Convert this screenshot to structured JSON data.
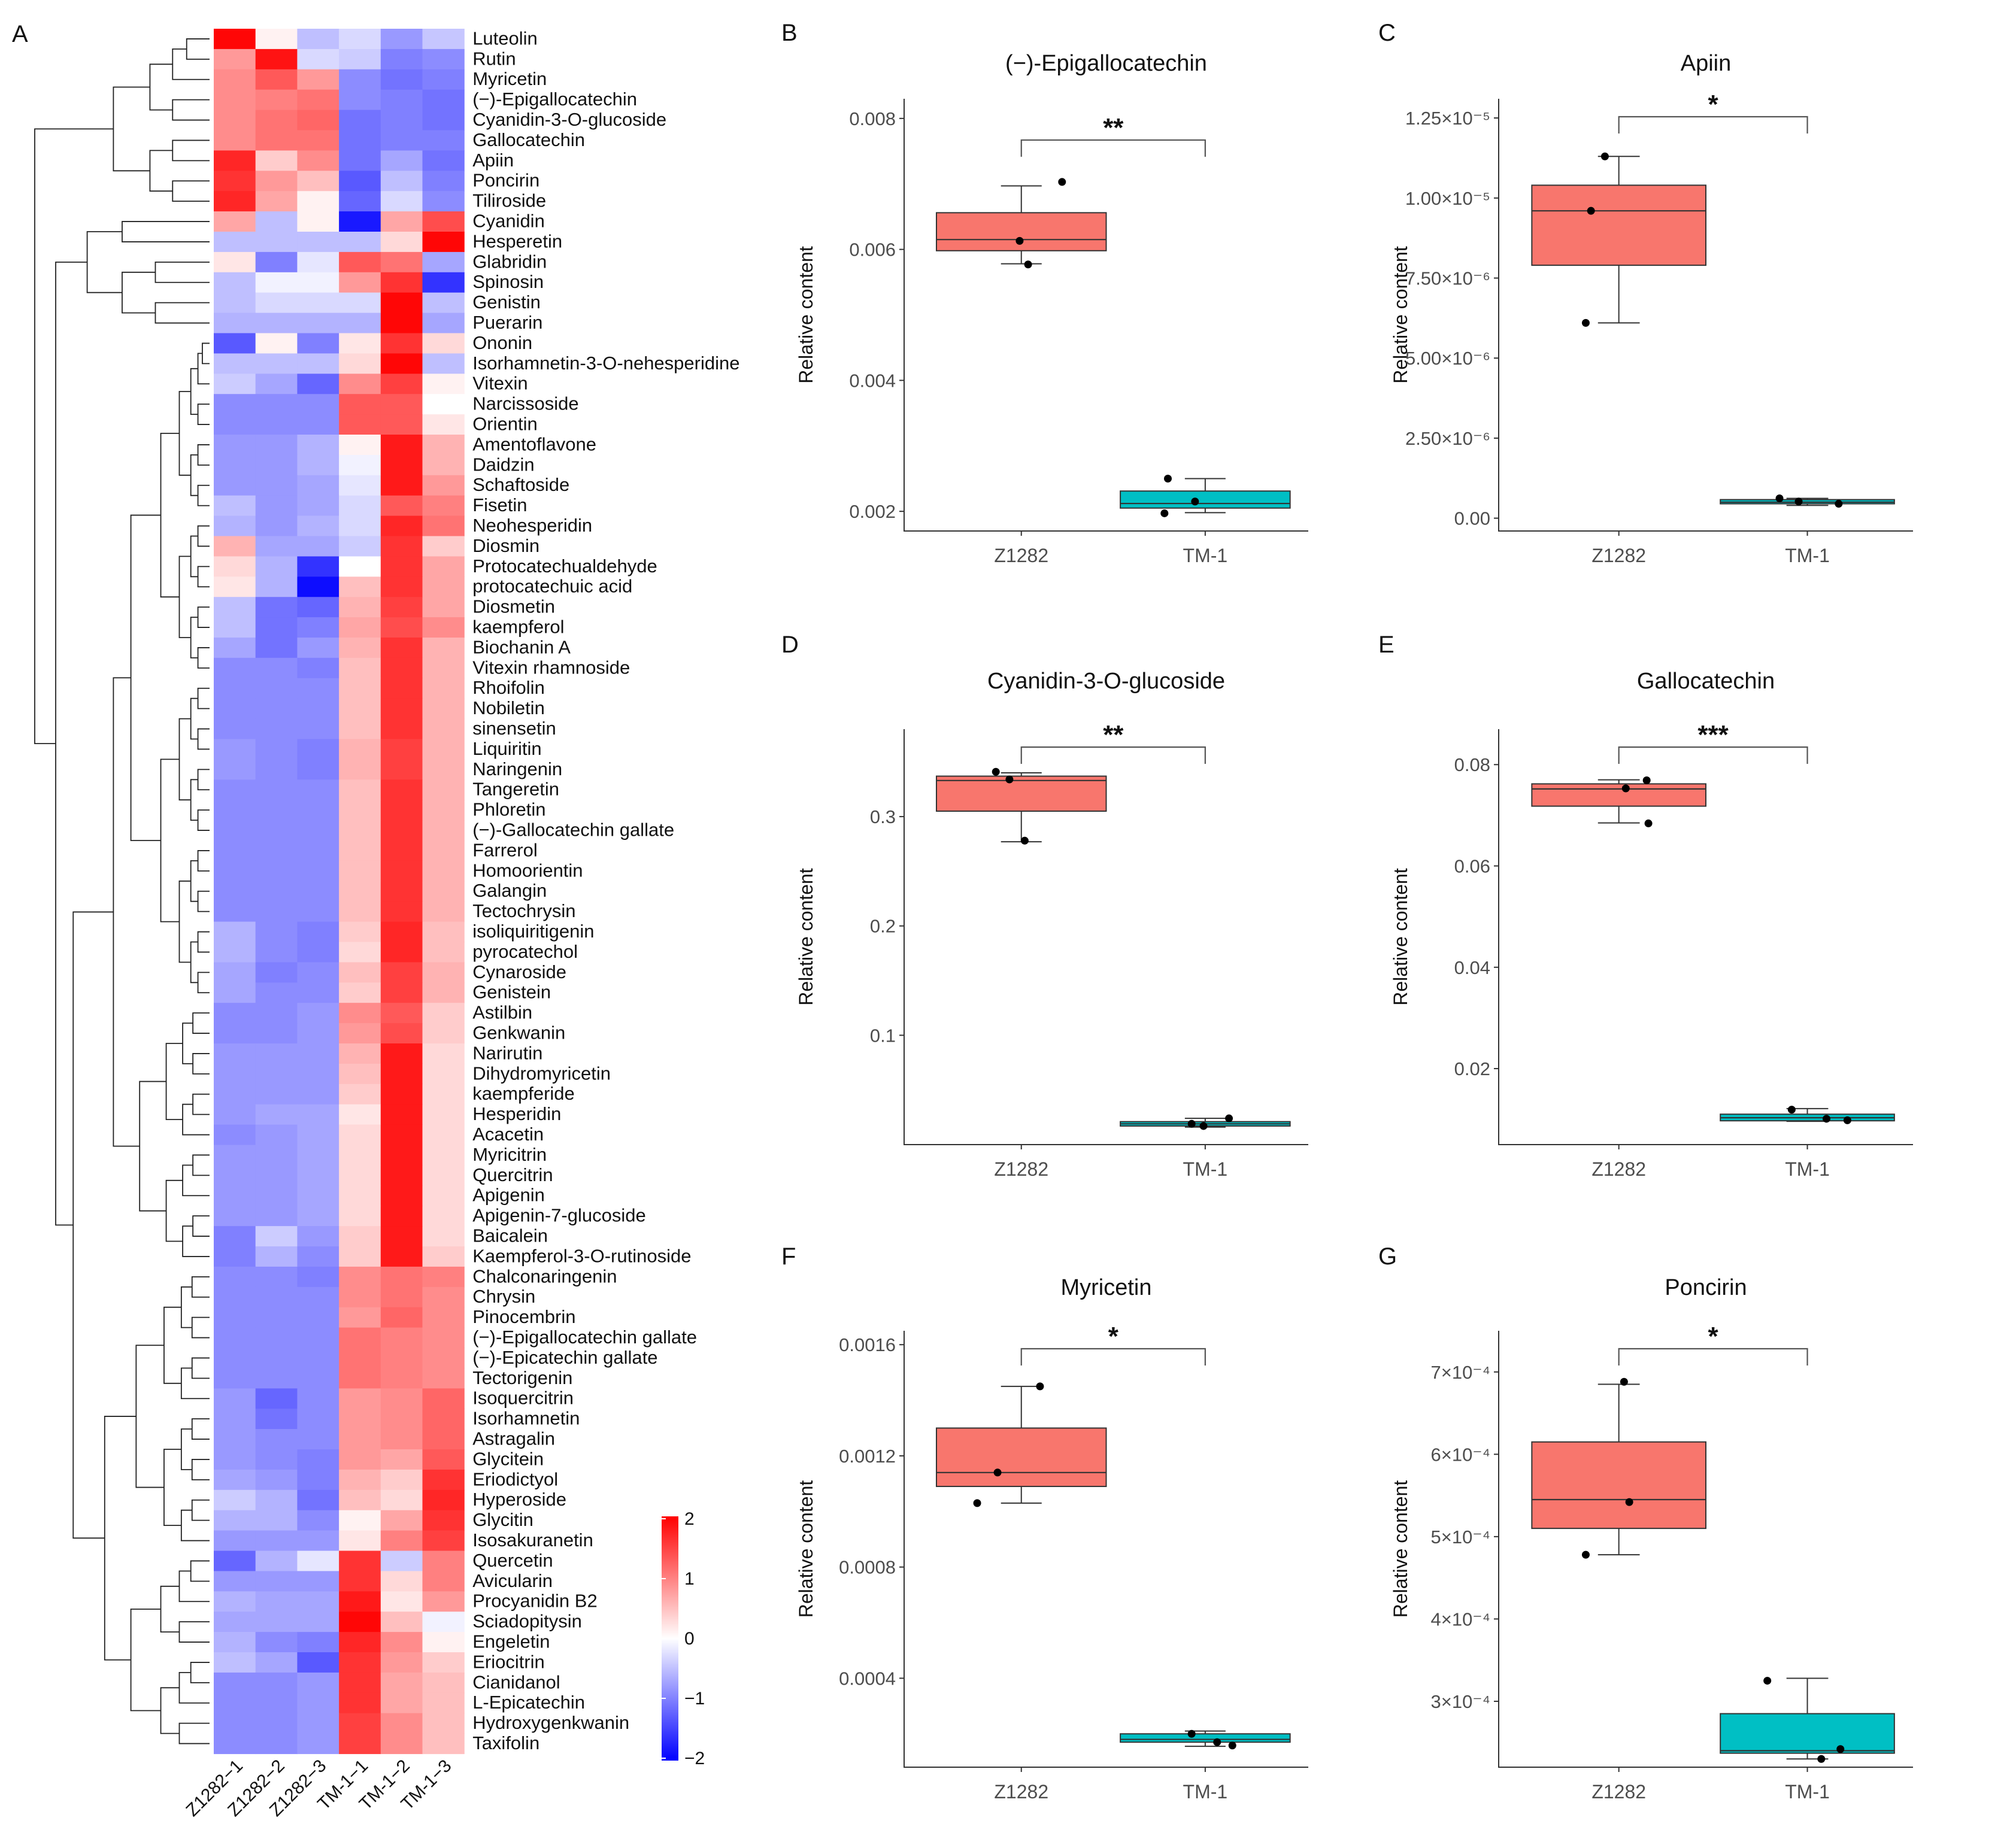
{
  "heatmap": {
    "panel_label": "A",
    "samples": [
      "Z1282−1",
      "Z1282−2",
      "Z1282−3",
      "TM-1−1",
      "TM-1−2",
      "TM-1−3"
    ],
    "compounds": [
      "Luteolin",
      "Rutin",
      "Myricetin",
      "(−)-Epigallocatechin",
      "Cyanidin-3-O-glucoside",
      "Gallocatechin",
      "Apiin",
      "Poncirin",
      "Tiliroside",
      "Cyanidin",
      "Hesperetin",
      "Glabridin",
      "Spinosin",
      "Genistin",
      "Puerarin",
      "Ononin",
      "Isorhamnetin-3-O-nehesperidine",
      "Vitexin",
      "Narcissoside",
      "Orientin",
      "Amentoflavone",
      "Daidzin",
      "Schaftoside",
      "Fisetin",
      "Neohesperidin",
      "Diosmin",
      "Protocatechualdehyde",
      "protocatechuic acid",
      "Diosmetin",
      "kaempferol",
      "Biochanin A",
      "Vitexin rhamnoside",
      "Rhoifolin",
      "Nobiletin",
      "sinensetin",
      "Liquiritin",
      "Naringenin",
      "Tangeretin",
      "Phloretin",
      "(−)-Gallocatechin gallate",
      "Farrerol",
      "Homoorientin",
      "Galangin",
      "Tectochrysin",
      "isoliquiritigenin",
      "pyrocatechol",
      "Cynaroside",
      "Genistein",
      "Astilbin",
      "Genkwanin",
      "Narirutin",
      "Dihydromyricetin",
      "kaempferide",
      "Hesperidin",
      "Acacetin",
      "Myricitrin",
      "Quercitrin",
      "Apigenin",
      "Apigenin-7-glucoside",
      "Baicalein",
      "Kaempferol-3-O-rutinoside",
      "Chalconaringenin",
      "Chrysin",
      "Pinocembrin",
      "(−)-Epigallocatechin gallate",
      "(−)-Epicatechin gallate",
      "Tectorigenin",
      "Isoquercitrin",
      "Isorhamnetin",
      "Astragalin",
      "Glycitein",
      "Eriodictyol",
      "Hyperoside",
      "Glycitin",
      "Isosakuranetin",
      "Quercetin",
      "Avicularin",
      "Procyanidin B2",
      "Sciadopitysin",
      "Engeletin",
      "Eriocitrin",
      "Cianidanol",
      "L-Epicatechin",
      "Hydroxygenkwanin",
      "Taxifolin"
    ],
    "values": [
      [
        1.95,
        0.1,
        -0.5,
        -0.3,
        -0.8,
        -0.45
      ],
      [
        0.8,
        1.85,
        -0.3,
        -0.4,
        -1.0,
        -0.9
      ],
      [
        0.9,
        1.3,
        0.8,
        -0.9,
        -1.1,
        -1.0
      ],
      [
        0.9,
        1.0,
        1.1,
        -0.9,
        -1.0,
        -1.1
      ],
      [
        0.9,
        1.1,
        1.2,
        -1.1,
        -1.0,
        -1.1
      ],
      [
        0.9,
        1.1,
        1.1,
        -1.1,
        -1.0,
        -1.0
      ],
      [
        1.7,
        0.4,
        0.9,
        -1.1,
        -0.7,
        -1.1
      ],
      [
        1.6,
        0.8,
        0.5,
        -1.3,
        -0.5,
        -1.0
      ],
      [
        1.7,
        0.7,
        0.1,
        -1.2,
        -0.3,
        -0.9
      ],
      [
        0.7,
        -0.5,
        0.1,
        -1.8,
        0.7,
        1.4
      ],
      [
        -0.5,
        -0.5,
        -0.5,
        -0.5,
        0.3,
        1.95
      ],
      [
        0.2,
        -1.0,
        -0.2,
        1.3,
        1.1,
        -0.7
      ],
      [
        -0.5,
        -0.1,
        -0.1,
        0.8,
        1.6,
        -1.6
      ],
      [
        -0.5,
        -0.3,
        -0.3,
        -0.3,
        1.95,
        -0.5
      ],
      [
        -0.6,
        -0.6,
        -0.6,
        -0.6,
        1.95,
        -0.7
      ],
      [
        -1.3,
        0.1,
        -1.0,
        0.2,
        1.6,
        0.3
      ],
      [
        -0.5,
        -0.5,
        -0.5,
        0.3,
        1.95,
        -0.5
      ],
      [
        -0.4,
        -0.7,
        -1.2,
        0.9,
        1.5,
        0.1
      ],
      [
        -0.9,
        -0.9,
        -0.9,
        1.3,
        1.3,
        0.0
      ],
      [
        -0.9,
        -0.9,
        -0.9,
        1.3,
        1.3,
        0.2
      ],
      [
        -0.8,
        -0.8,
        -0.6,
        0.1,
        1.8,
        0.6
      ],
      [
        -0.8,
        -0.8,
        -0.6,
        -0.1,
        1.8,
        0.6
      ],
      [
        -0.8,
        -0.8,
        -0.7,
        -0.2,
        1.8,
        0.8
      ],
      [
        -0.5,
        -0.8,
        -0.7,
        -0.3,
        1.3,
        1.0
      ],
      [
        -0.6,
        -0.8,
        -0.6,
        -0.3,
        1.7,
        1.1
      ],
      [
        0.6,
        -0.7,
        -0.7,
        -0.4,
        1.6,
        0.4
      ],
      [
        0.3,
        -0.6,
        -1.6,
        0.0,
        1.6,
        0.7
      ],
      [
        0.2,
        -0.6,
        -1.9,
        0.5,
        1.6,
        0.7
      ],
      [
        -0.5,
        -1.1,
        -1.2,
        0.6,
        1.5,
        0.7
      ],
      [
        -0.5,
        -1.1,
        -1.0,
        0.7,
        1.4,
        0.9
      ],
      [
        -0.7,
        -1.1,
        -0.8,
        0.6,
        1.6,
        0.6
      ],
      [
        -0.9,
        -0.9,
        -1.0,
        0.5,
        1.6,
        0.6
      ],
      [
        -0.9,
        -0.9,
        -0.9,
        0.5,
        1.6,
        0.6
      ],
      [
        -0.9,
        -0.9,
        -0.9,
        0.5,
        1.6,
        0.6
      ],
      [
        -0.9,
        -0.9,
        -0.9,
        0.5,
        1.6,
        0.6
      ],
      [
        -0.8,
        -0.9,
        -1.0,
        0.6,
        1.5,
        0.6
      ],
      [
        -0.8,
        -0.9,
        -1.0,
        0.6,
        1.5,
        0.6
      ],
      [
        -0.9,
        -0.9,
        -0.9,
        0.5,
        1.6,
        0.6
      ],
      [
        -0.9,
        -0.9,
        -0.9,
        0.5,
        1.6,
        0.6
      ],
      [
        -0.9,
        -0.9,
        -0.9,
        0.5,
        1.6,
        0.6
      ],
      [
        -0.9,
        -0.9,
        -0.9,
        0.5,
        1.6,
        0.6
      ],
      [
        -0.9,
        -0.9,
        -0.9,
        0.5,
        1.6,
        0.6
      ],
      [
        -0.9,
        -0.9,
        -0.9,
        0.5,
        1.6,
        0.6
      ],
      [
        -0.9,
        -0.9,
        -0.9,
        0.5,
        1.6,
        0.6
      ],
      [
        -0.6,
        -0.9,
        -1.0,
        0.4,
        1.7,
        0.5
      ],
      [
        -0.6,
        -0.9,
        -1.0,
        0.3,
        1.7,
        0.5
      ],
      [
        -0.7,
        -1.0,
        -0.9,
        0.5,
        1.5,
        0.6
      ],
      [
        -0.7,
        -0.9,
        -0.9,
        0.4,
        1.5,
        0.6
      ],
      [
        -0.9,
        -0.9,
        -0.8,
        0.9,
        1.3,
        0.4
      ],
      [
        -0.9,
        -0.9,
        -0.8,
        0.8,
        1.4,
        0.4
      ],
      [
        -0.8,
        -0.8,
        -0.8,
        0.6,
        1.8,
        0.3
      ],
      [
        -0.8,
        -0.8,
        -0.8,
        0.5,
        1.8,
        0.3
      ],
      [
        -0.8,
        -0.8,
        -0.8,
        0.4,
        1.8,
        0.3
      ],
      [
        -0.8,
        -0.7,
        -0.7,
        0.2,
        1.8,
        0.3
      ],
      [
        -0.9,
        -0.8,
        -0.7,
        0.3,
        1.8,
        0.3
      ],
      [
        -0.8,
        -0.8,
        -0.7,
        0.3,
        1.8,
        0.3
      ],
      [
        -0.8,
        -0.8,
        -0.7,
        0.3,
        1.8,
        0.3
      ],
      [
        -0.8,
        -0.8,
        -0.7,
        0.3,
        1.8,
        0.3
      ],
      [
        -0.8,
        -0.8,
        -0.7,
        0.3,
        1.8,
        0.3
      ],
      [
        -1.0,
        -0.4,
        -0.8,
        0.4,
        1.8,
        0.3
      ],
      [
        -1.0,
        -0.6,
        -0.9,
        0.4,
        1.8,
        0.4
      ],
      [
        -0.9,
        -0.9,
        -1.0,
        0.9,
        1.1,
        1.0
      ],
      [
        -0.9,
        -0.9,
        -0.9,
        0.9,
        1.1,
        0.9
      ],
      [
        -0.9,
        -0.9,
        -0.9,
        0.8,
        1.2,
        0.9
      ],
      [
        -0.9,
        -0.9,
        -0.9,
        1.1,
        1.0,
        0.9
      ],
      [
        -0.9,
        -0.9,
        -0.9,
        1.1,
        1.0,
        0.9
      ],
      [
        -0.9,
        -0.9,
        -0.9,
        1.1,
        1.0,
        0.9
      ],
      [
        -0.8,
        -1.2,
        -0.9,
        0.8,
        0.9,
        1.2
      ],
      [
        -0.8,
        -1.1,
        -0.9,
        0.8,
        0.9,
        1.2
      ],
      [
        -0.8,
        -0.9,
        -0.9,
        0.8,
        0.9,
        1.2
      ],
      [
        -0.8,
        -0.9,
        -1.0,
        0.8,
        0.7,
        1.3
      ],
      [
        -0.7,
        -0.8,
        -1.0,
        0.6,
        0.4,
        1.6
      ],
      [
        -0.4,
        -0.6,
        -1.1,
        0.5,
        0.3,
        1.7
      ],
      [
        -0.6,
        -0.6,
        -0.9,
        0.1,
        0.7,
        1.6
      ],
      [
        -0.8,
        -0.8,
        -0.8,
        0.2,
        1.0,
        1.5
      ],
      [
        -1.2,
        -0.6,
        -0.2,
        1.6,
        -0.4,
        1.0
      ],
      [
        -0.8,
        -0.8,
        -0.8,
        1.6,
        0.3,
        1.0
      ],
      [
        -0.6,
        -0.7,
        -0.7,
        1.8,
        0.2,
        0.8
      ],
      [
        -0.7,
        -0.7,
        -0.7,
        1.95,
        0.5,
        -0.1
      ],
      [
        -0.6,
        -0.9,
        -1.0,
        1.7,
        0.9,
        0.1
      ],
      [
        -0.5,
        -0.7,
        -1.3,
        1.6,
        0.8,
        0.4
      ],
      [
        -0.9,
        -0.9,
        -0.8,
        1.6,
        0.7,
        0.5
      ],
      [
        -0.9,
        -0.9,
        -0.8,
        1.6,
        0.7,
        0.5
      ],
      [
        -0.9,
        -0.9,
        -0.8,
        1.5,
        0.9,
        0.5
      ],
      [
        -0.9,
        -0.9,
        -0.8,
        1.5,
        0.9,
        0.5
      ]
    ],
    "legend": {
      "ticks": [
        2,
        1,
        0,
        -1,
        -2
      ],
      "labels": [
        "2",
        "1",
        "0",
        "−1",
        "−2"
      ],
      "colors": {
        "high": "#ff0000",
        "mid": "#ffffff",
        "low": "#0000ff"
      }
    }
  },
  "chart_data": [
    {
      "panel": "B",
      "type": "box",
      "title": "(−)-Epigallocatechin",
      "ylabel": "Relative content",
      "ylim": [
        0.0017,
        0.0083
      ],
      "ticks": [
        0.002,
        0.004,
        0.006,
        0.008
      ],
      "tick_labels": [
        "0.002",
        "0.004",
        "0.006",
        "0.008"
      ],
      "groups": [
        {
          "name": "Z1282",
          "q1": 0.00598,
          "median": 0.00615,
          "q3": 0.00656,
          "whisker_low": 0.00578,
          "whisker_high": 0.00697,
          "points": [
            0.00703,
            0.00613,
            0.00577
          ],
          "jitter": [
            0.24,
            -0.01,
            0.04
          ]
        },
        {
          "name": "TM-1",
          "q1": 0.00205,
          "median": 0.00212,
          "q3": 0.00231,
          "whisker_low": 0.00198,
          "whisker_high": 0.0025,
          "points": [
            0.0025,
            0.00215,
            0.00197
          ],
          "jitter": [
            -0.22,
            -0.06,
            -0.24
          ]
        }
      ],
      "significance": "**"
    },
    {
      "panel": "C",
      "type": "box",
      "title": "Apiin",
      "ylabel": "Relative content",
      "ylim": [
        -4e-07,
        1.31e-05
      ],
      "ticks": [
        0,
        2.5e-06,
        5e-06,
        7.5e-06,
        1e-05,
        1.25e-05
      ],
      "tick_labels": [
        "0.00",
        "2.50×10⁻⁶",
        "5.00×10⁻⁶",
        "7.50×10⁻⁶",
        "1.00×10⁻⁵",
        "1.25×10⁻⁵"
      ],
      "groups": [
        {
          "name": "Z1282",
          "q1": 7.9e-06,
          "median": 9.6e-06,
          "q3": 1.04e-05,
          "whisker_low": 6.1e-06,
          "whisker_high": 1.13e-05,
          "points": [
            1.13e-05,
            9.6e-06,
            6.1e-06
          ],
          "jitter": [
            -0.08,
            -0.16,
            -0.19
          ]
        },
        {
          "name": "TM-1",
          "q1": 4.5e-07,
          "median": 5e-07,
          "q3": 5.8e-07,
          "whisker_low": 4e-07,
          "whisker_high": 6.2e-07,
          "points": [
            6.2e-07,
            5.2e-07,
            4.5e-07
          ],
          "jitter": [
            -0.16,
            -0.05,
            0.18
          ]
        }
      ],
      "significance": "*"
    },
    {
      "panel": "D",
      "type": "box",
      "title": "Cyanidin-3-O-glucoside",
      "ylabel": "Relative content",
      "ylim": [
        0,
        0.38
      ],
      "ticks": [
        0.1,
        0.2,
        0.3
      ],
      "tick_labels": [
        "0.1",
        "0.2",
        "0.3"
      ],
      "groups": [
        {
          "name": "Z1282",
          "q1": 0.305,
          "median": 0.333,
          "q3": 0.337,
          "whisker_low": 0.277,
          "whisker_high": 0.34,
          "points": [
            0.341,
            0.334,
            0.278
          ],
          "jitter": [
            -0.15,
            -0.07,
            0.02
          ]
        },
        {
          "name": "TM-1",
          "q1": 0.017,
          "median": 0.019,
          "q3": 0.021,
          "whisker_low": 0.016,
          "whisker_high": 0.024,
          "points": [
            0.024,
            0.019,
            0.017
          ],
          "jitter": [
            0.14,
            -0.08,
            -0.01
          ]
        }
      ],
      "significance": "**"
    },
    {
      "panel": "E",
      "type": "box",
      "title": "Gallocatechin",
      "ylabel": "Relative content",
      "ylim": [
        0.005,
        0.087
      ],
      "ticks": [
        0.02,
        0.04,
        0.06,
        0.08
      ],
      "tick_labels": [
        "0.02",
        "0.04",
        "0.06",
        "0.08"
      ],
      "groups": [
        {
          "name": "Z1282",
          "q1": 0.0718,
          "median": 0.0752,
          "q3": 0.0762,
          "whisker_low": 0.0685,
          "whisker_high": 0.077,
          "points": [
            0.0769,
            0.0753,
            0.0684
          ],
          "jitter": [
            0.16,
            0.04,
            0.17
          ]
        },
        {
          "name": "TM-1",
          "q1": 0.0097,
          "median": 0.0103,
          "q3": 0.011,
          "whisker_low": 0.0096,
          "whisker_high": 0.0121,
          "points": [
            0.0119,
            0.0101,
            0.0098
          ],
          "jitter": [
            -0.09,
            0.11,
            0.23
          ]
        }
      ],
      "significance": "***"
    },
    {
      "panel": "F",
      "type": "box",
      "title": "Myricetin",
      "ylabel": "Relative content",
      "ylim": [
        8e-05,
        0.00165
      ],
      "ticks": [
        0.0004,
        0.0008,
        0.0012,
        0.0016
      ],
      "tick_labels": [
        "0.0004",
        "0.0008",
        "0.0012",
        "0.0016"
      ],
      "groups": [
        {
          "name": "Z1282",
          "q1": 0.00109,
          "median": 0.00114,
          "q3": 0.0013,
          "whisker_low": 0.00103,
          "whisker_high": 0.00145,
          "points": [
            0.00145,
            0.00114,
            0.00103
          ],
          "jitter": [
            0.11,
            -0.14,
            -0.26
          ]
        },
        {
          "name": "TM-1",
          "q1": 0.00017,
          "median": 0.00018,
          "q3": 0.0002,
          "whisker_low": 0.000155,
          "whisker_high": 0.00021,
          "points": [
            0.0002,
            0.00017,
            0.000158
          ],
          "jitter": [
            -0.08,
            0.07,
            0.16
          ]
        }
      ],
      "significance": "*"
    },
    {
      "panel": "G",
      "type": "box",
      "title": "Poncirin",
      "ylabel": "Relative content",
      "ylim": [
        0.00022,
        0.00075
      ],
      "ticks": [
        0.0003,
        0.0004,
        0.0005,
        0.0006,
        0.0007
      ],
      "tick_labels": [
        "3×10⁻⁴",
        "4×10⁻⁴",
        "5×10⁻⁴",
        "6×10⁻⁴",
        "7×10⁻⁴"
      ],
      "groups": [
        {
          "name": "Z1282",
          "q1": 0.00051,
          "median": 0.000545,
          "q3": 0.000615,
          "whisker_low": 0.000478,
          "whisker_high": 0.000685,
          "points": [
            0.000688,
            0.000542,
            0.000478
          ],
          "jitter": [
            0.03,
            0.06,
            -0.19
          ]
        },
        {
          "name": "TM-1",
          "q1": 0.000237,
          "median": 0.00024,
          "q3": 0.000285,
          "whisker_low": 0.00023,
          "whisker_high": 0.000328,
          "points": [
            0.000325,
            0.000242,
            0.00023
          ],
          "jitter": [
            -0.23,
            0.19,
            0.08
          ]
        }
      ],
      "significance": "*"
    }
  ],
  "colors": {
    "z1282_fill": "#f8766d",
    "tm1_fill": "#00bfc4",
    "box_stroke": "#333333",
    "point": "#000000",
    "axis": "#333333"
  }
}
